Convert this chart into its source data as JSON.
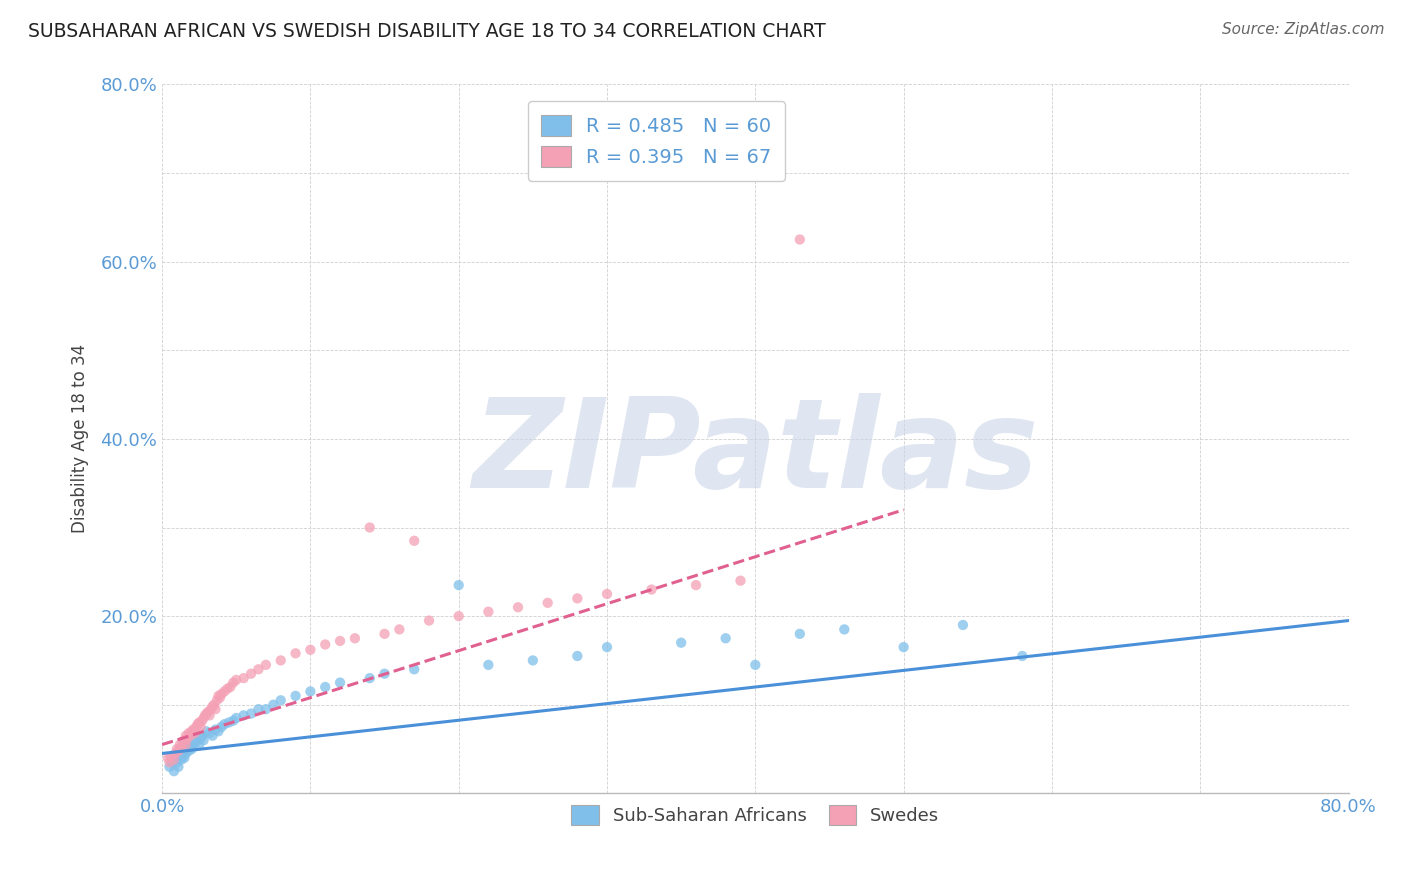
{
  "title": "SUBSAHARAN AFRICAN VS SWEDISH DISABILITY AGE 18 TO 34 CORRELATION CHART",
  "source": "Source: ZipAtlas.com",
  "ylabel": "Disability Age 18 to 34",
  "xlim": [
    0.0,
    0.8
  ],
  "ylim": [
    0.0,
    0.8
  ],
  "xticks": [
    0.0,
    0.1,
    0.2,
    0.3,
    0.4,
    0.5,
    0.6,
    0.7,
    0.8
  ],
  "yticks": [
    0.0,
    0.1,
    0.2,
    0.3,
    0.4,
    0.5,
    0.6,
    0.7,
    0.8
  ],
  "xticklabels": [
    "0.0%",
    "",
    "",
    "",
    "",
    "",
    "",
    "",
    "80.0%"
  ],
  "yticklabels": [
    "",
    "",
    "20.0%",
    "",
    "40.0%",
    "",
    "60.0%",
    "",
    "80.0%"
  ],
  "blue_color": "#7fbfea",
  "pink_color": "#f4a0b5",
  "blue_line_color": "#4a90d9",
  "pink_line_color": "#e06090",
  "R_blue": 0.485,
  "N_blue": 60,
  "R_pink": 0.395,
  "N_pink": 67,
  "legend_labels": [
    "Sub-Saharan Africans",
    "Swedes"
  ],
  "watermark": "ZIPatlas",
  "watermark_color": "#ccd6e8",
  "blue_scatter_x": [
    0.005,
    0.007,
    0.008,
    0.009,
    0.01,
    0.01,
    0.011,
    0.012,
    0.013,
    0.014,
    0.015,
    0.015,
    0.016,
    0.017,
    0.018,
    0.019,
    0.02,
    0.021,
    0.022,
    0.023,
    0.025,
    0.026,
    0.027,
    0.028,
    0.03,
    0.032,
    0.034,
    0.036,
    0.038,
    0.04,
    0.042,
    0.045,
    0.048,
    0.05,
    0.055,
    0.06,
    0.065,
    0.07,
    0.075,
    0.08,
    0.09,
    0.1,
    0.11,
    0.12,
    0.14,
    0.15,
    0.17,
    0.2,
    0.22,
    0.25,
    0.28,
    0.3,
    0.35,
    0.38,
    0.4,
    0.43,
    0.46,
    0.5,
    0.54,
    0.58
  ],
  "blue_scatter_y": [
    0.03,
    0.035,
    0.025,
    0.04,
    0.035,
    0.045,
    0.03,
    0.05,
    0.038,
    0.042,
    0.04,
    0.055,
    0.045,
    0.05,
    0.048,
    0.052,
    0.05,
    0.055,
    0.06,
    0.058,
    0.055,
    0.062,
    0.065,
    0.06,
    0.07,
    0.068,
    0.065,
    0.072,
    0.07,
    0.075,
    0.078,
    0.08,
    0.082,
    0.085,
    0.088,
    0.09,
    0.095,
    0.095,
    0.1,
    0.105,
    0.11,
    0.115,
    0.12,
    0.125,
    0.13,
    0.135,
    0.14,
    0.235,
    0.145,
    0.15,
    0.155,
    0.165,
    0.17,
    0.175,
    0.145,
    0.18,
    0.185,
    0.165,
    0.19,
    0.155
  ],
  "pink_scatter_x": [
    0.004,
    0.005,
    0.006,
    0.008,
    0.009,
    0.01,
    0.011,
    0.012,
    0.013,
    0.014,
    0.015,
    0.016,
    0.016,
    0.017,
    0.018,
    0.019,
    0.02,
    0.021,
    0.022,
    0.023,
    0.024,
    0.025,
    0.026,
    0.027,
    0.028,
    0.029,
    0.03,
    0.031,
    0.032,
    0.033,
    0.034,
    0.035,
    0.036,
    0.037,
    0.038,
    0.039,
    0.04,
    0.042,
    0.044,
    0.046,
    0.048,
    0.05,
    0.055,
    0.06,
    0.065,
    0.07,
    0.08,
    0.09,
    0.1,
    0.11,
    0.12,
    0.13,
    0.14,
    0.15,
    0.16,
    0.17,
    0.18,
    0.2,
    0.22,
    0.24,
    0.26,
    0.28,
    0.3,
    0.33,
    0.36,
    0.39,
    0.43
  ],
  "pink_scatter_y": [
    0.04,
    0.035,
    0.042,
    0.038,
    0.045,
    0.05,
    0.048,
    0.055,
    0.052,
    0.058,
    0.06,
    0.055,
    0.065,
    0.062,
    0.068,
    0.065,
    0.07,
    0.072,
    0.068,
    0.075,
    0.078,
    0.08,
    0.075,
    0.082,
    0.085,
    0.088,
    0.09,
    0.092,
    0.088,
    0.095,
    0.098,
    0.1,
    0.095,
    0.105,
    0.11,
    0.108,
    0.112,
    0.115,
    0.118,
    0.12,
    0.125,
    0.128,
    0.13,
    0.135,
    0.14,
    0.145,
    0.15,
    0.158,
    0.162,
    0.168,
    0.172,
    0.175,
    0.3,
    0.18,
    0.185,
    0.285,
    0.195,
    0.2,
    0.205,
    0.21,
    0.215,
    0.22,
    0.225,
    0.23,
    0.235,
    0.24,
    0.625
  ],
  "blue_trendline_x": [
    0.0,
    0.8
  ],
  "blue_trendline_y": [
    0.045,
    0.195
  ],
  "pink_trendline_x": [
    0.0,
    0.5
  ],
  "pink_trendline_y": [
    0.055,
    0.32
  ]
}
